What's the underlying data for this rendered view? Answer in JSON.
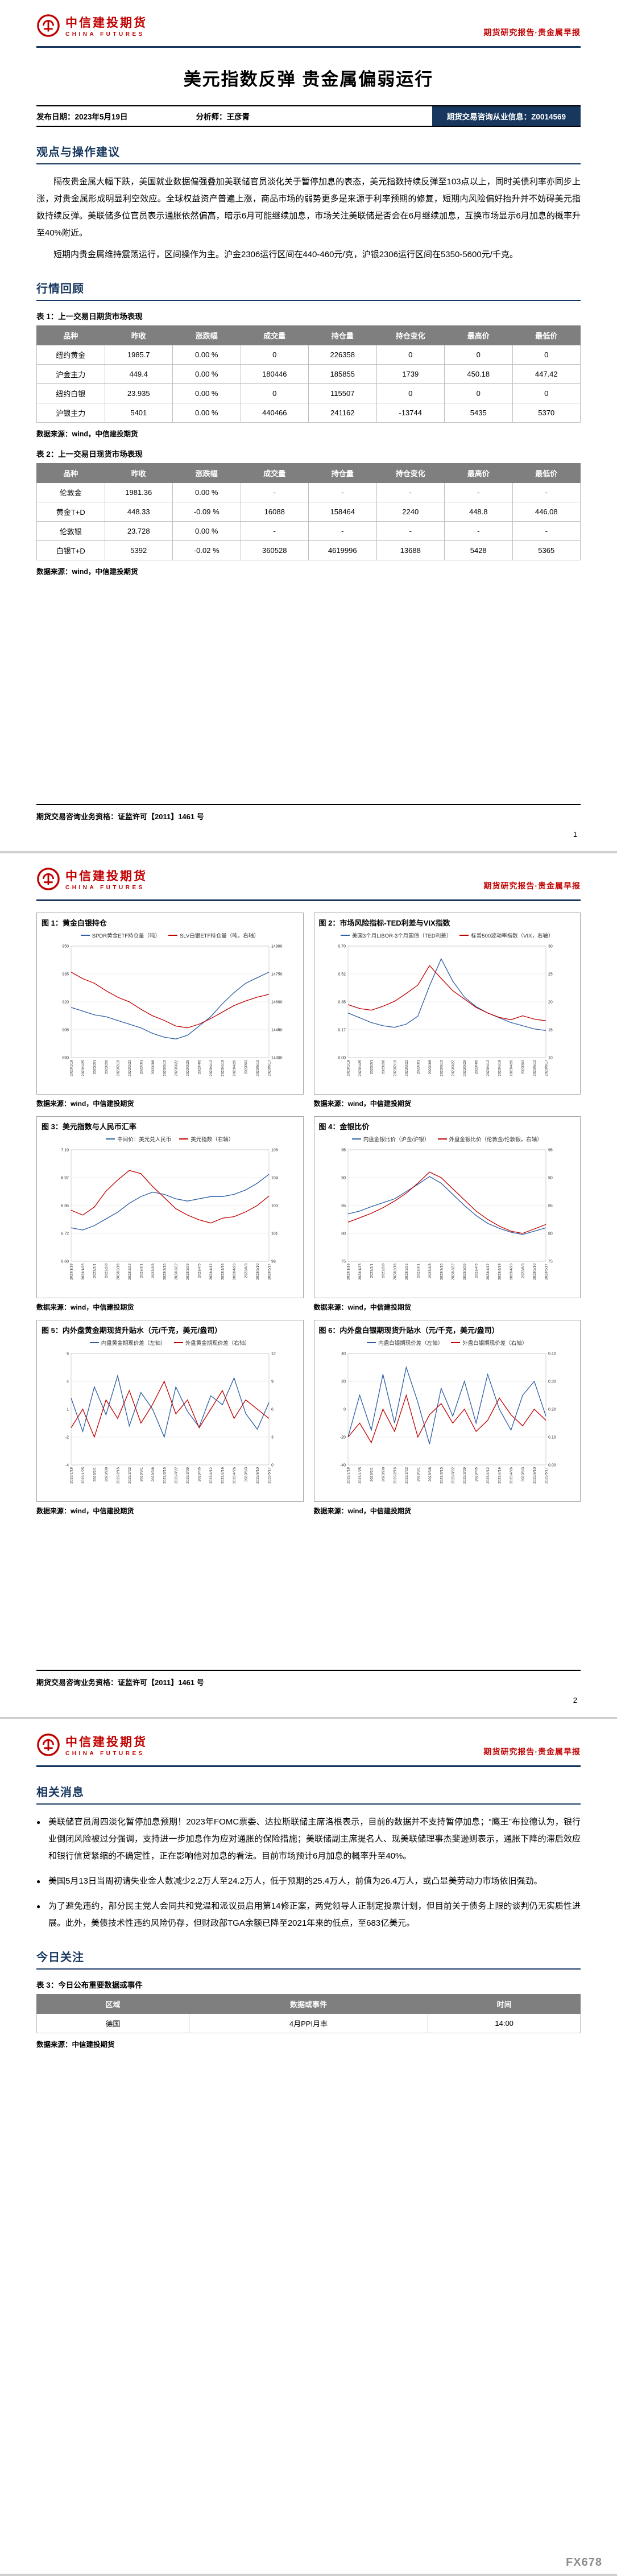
{
  "brand": {
    "logo_cn": "中信建投期货",
    "logo_en": "CHINA FUTURES",
    "header_tag": "期货研究报告·贵金属早报",
    "colors": {
      "red": "#c00000",
      "navy": "#17375e"
    }
  },
  "page1": {
    "title": "美元指数反弹  贵金属偏弱运行",
    "meta": {
      "publish": "发布日期：2023年5月19日",
      "analyst": "分析师：王彦青",
      "license": "期货交易咨询从业信息：Z0014569"
    },
    "viewpoint": {
      "title": "观点与操作建议",
      "paragraphs": [
        "隔夜贵金属大幅下跌，美国就业数据偏强叠加美联储官员淡化关于暂停加息的表态，美元指数持续反弹至103点以上，同时美债利率亦同步上涨，对贵金属形成明显利空效应。全球权益资产普遍上涨，商品市场的弱势更多是来源于利率预期的修复，短期内风险偏好抬升并不妨碍美元指数持续反弹。美联储多位官员表示通胀依然偏高，暗示6月可能继续加息，市场关注美联储是否会在6月继续加息，互换市场显示6月加息的概率升至40%附近。",
        "短期内贵金属维持震荡运行，区间操作为主。沪金2306运行区间在440-460元/克，沪银2306运行区间在5350-5600元/千克。"
      ]
    },
    "review": {
      "title": "行情回顾",
      "table1": {
        "caption": "表 1：上一交易日期货市场表现",
        "headers": [
          "品种",
          "昨收",
          "涨跌幅",
          "成交量",
          "持仓量",
          "持仓变化",
          "最高价",
          "最低价"
        ],
        "rows": [
          [
            "纽约黄金",
            "1985.7",
            "0.00 %",
            "0",
            "226358",
            "0",
            "0",
            "0"
          ],
          [
            "沪金主力",
            "449.4",
            "0.00 %",
            "180446",
            "185855",
            "1739",
            "450.18",
            "447.42"
          ],
          [
            "纽约白银",
            "23.935",
            "0.00 %",
            "0",
            "115507",
            "0",
            "0",
            "0"
          ],
          [
            "沪银主力",
            "5401",
            "0.00 %",
            "440466",
            "241162",
            "-13744",
            "5435",
            "5370"
          ]
        ],
        "source": "数据来源：wind，中信建投期货"
      },
      "table2": {
        "caption": "表 2：上一交易日现货市场表现",
        "headers": [
          "品种",
          "昨收",
          "涨跌幅",
          "成交量",
          "持仓量",
          "持仓变化",
          "最高价",
          "最低价"
        ],
        "rows": [
          [
            "伦敦金",
            "1981.36",
            "0.00 %",
            "-",
            "-",
            "-",
            "-",
            "-"
          ],
          [
            "黄金T+D",
            "448.33",
            "-0.09 %",
            "16088",
            "158464",
            "2240",
            "448.8",
            "446.08"
          ],
          [
            "伦敦银",
            "23.728",
            "0.00 %",
            "-",
            "-",
            "-",
            "-",
            "-"
          ],
          [
            "白银T+D",
            "5392",
            "-0.02 %",
            "360528",
            "4619996",
            "13688",
            "5428",
            "5365"
          ]
        ],
        "source": "数据来源：wind，中信建投期货"
      }
    },
    "footer": {
      "qualification": "期货交易咨询业务资格：证监许可【2011】1461 号",
      "page_no": "1"
    }
  },
  "page2": {
    "figure_source": "数据来源：wind，中信建投期货",
    "footer": {
      "qualification": "期货交易咨询业务资格：证监许可【2011】1461 号",
      "page_no": "2"
    }
  },
  "page3": {
    "news": {
      "title": "相关消息",
      "bullets": [
        "美联储官员周四淡化暂停加息预期！2023年FOMC票委、达拉斯联储主席洛根表示，目前的数据并不支持暂停加息；“鹰王”布拉德认为，银行业倒闭风险被过分强调，支持进一步加息作为应对通胀的保险措施；美联储副主席提名人、现美联储理事杰斐逊则表示，通胀下降的滞后效应和银行信贷紧缩的不确定性，正在影响他对加息的看法。目前市场预计6月加息的概率升至40%。",
        "美国5月13日当周初请失业金人数减少2.2万人至24.2万人，低于预期的25.4万人，前值为26.4万人，或凸显美劳动力市场依旧强劲。",
        "为了避免违约，部分民主党人会同共和党温和派议员启用第14修正案，两党领导人正制定投票计划，但目前关于债务上限的谈判仍无实质性进展。此外，美债技术性违约风险仍存，但财政部TGA余额已降至2021年来的低点，至683亿美元。"
      ]
    },
    "focus": {
      "title": "今日关注",
      "table3": {
        "caption": "表 3：今日公布重要数据或事件",
        "headers": [
          "区域",
          "数据或事件",
          "时间"
        ],
        "rows": [
          [
            "德国",
            "4月PPI月率",
            "14:00"
          ]
        ],
        "source": "数据来源：中信建投期货"
      }
    },
    "watermark": "FX678"
  },
  "chart_data": [
    {
      "id": "fig1",
      "type": "line",
      "title": "图 1：黄金白银持仓",
      "x": [
        "2023/1/18",
        "2023/1/25",
        "2023/2/1",
        "2023/2/8",
        "2023/2/15",
        "2023/2/22",
        "2023/3/1",
        "2023/3/8",
        "2023/3/15",
        "2023/3/22",
        "2023/3/29",
        "2023/4/5",
        "2023/4/12",
        "2023/4/19",
        "2023/4/26",
        "2023/5/3",
        "2023/5/10",
        "2023/5/17"
      ],
      "ylim_left": [
        890,
        950
      ],
      "left_dp": 0,
      "ylim_right": [
        14300,
        14900
      ],
      "right_dp": 0,
      "legend_position": "top",
      "grid": true,
      "series": [
        {
          "name": "SPDR黄金ETF持仓量（吨）",
          "axis": "left",
          "color": "#2e5fa3",
          "values": [
            917,
            915,
            913,
            912,
            910,
            908,
            906,
            903,
            901,
            900,
            902,
            907,
            912,
            919,
            925,
            930,
            933,
            936
          ]
        },
        {
          "name": "SLV白银ETF持仓量（吨，右轴）",
          "axis": "right",
          "color": "#c00000",
          "values": [
            14760,
            14725,
            14700,
            14660,
            14625,
            14600,
            14560,
            14525,
            14500,
            14470,
            14460,
            14480,
            14510,
            14545,
            14580,
            14605,
            14625,
            14640
          ]
        }
      ]
    },
    {
      "id": "fig2",
      "type": "line",
      "title": "图 2：市场风险指标-TED利差与VIX指数",
      "x": [
        "2023/1/18",
        "2023/1/25",
        "2023/2/1",
        "2023/2/8",
        "2023/2/15",
        "2023/2/22",
        "2023/3/1",
        "2023/3/8",
        "2023/3/15",
        "2023/3/22",
        "2023/3/29",
        "2023/4/5",
        "2023/4/12",
        "2023/4/19",
        "2023/4/26",
        "2023/5/3",
        "2023/5/10",
        "2023/5/17"
      ],
      "ylim_left": [
        0,
        0.7
      ],
      "left_dp": 2,
      "ylim_right": [
        10,
        30
      ],
      "right_dp": 0,
      "legend_position": "top",
      "grid": true,
      "series": [
        {
          "name": "美国3个月LIBOR-3个月国债（TED利差）",
          "axis": "left",
          "color": "#2e5fa3",
          "values": [
            0.28,
            0.25,
            0.22,
            0.2,
            0.19,
            0.21,
            0.26,
            0.45,
            0.62,
            0.48,
            0.38,
            0.32,
            0.28,
            0.25,
            0.22,
            0.2,
            0.18,
            0.17
          ]
        },
        {
          "name": "标普500波动率指数（VIX，右轴）",
          "axis": "right",
          "color": "#c00000",
          "values": [
            19.5,
            18.8,
            18.5,
            19.2,
            20.1,
            21.5,
            23.0,
            26.5,
            24.2,
            22.0,
            20.5,
            19.0,
            18.0,
            17.2,
            16.8,
            17.5,
            16.9,
            16.6
          ]
        }
      ]
    },
    {
      "id": "fig3",
      "type": "line",
      "title": "图 3：美元指数与人民币汇率",
      "x": [
        "2023/1/18",
        "2023/1/25",
        "2023/2/1",
        "2023/2/8",
        "2023/2/15",
        "2023/2/22",
        "2023/3/1",
        "2023/3/8",
        "2023/3/15",
        "2023/3/22",
        "2023/3/29",
        "2023/4/5",
        "2023/4/12",
        "2023/4/19",
        "2023/4/26",
        "2023/5/3",
        "2023/5/10",
        "2023/5/17"
      ],
      "ylim_left": [
        6.6,
        7.1
      ],
      "left_dp": 2,
      "ylim_right": [
        99,
        106
      ],
      "right_dp": 0,
      "legend_position": "top",
      "grid": true,
      "series": [
        {
          "name": "中间价：美元兑人民币",
          "axis": "left",
          "color": "#2e5fa3",
          "values": [
            6.75,
            6.74,
            6.76,
            6.79,
            6.82,
            6.86,
            6.89,
            6.91,
            6.9,
            6.88,
            6.87,
            6.88,
            6.89,
            6.89,
            6.9,
            6.92,
            6.95,
            6.99
          ]
        },
        {
          "name": "美元指数（右轴）",
          "axis": "right",
          "color": "#c00000",
          "values": [
            102.2,
            101.9,
            102.4,
            103.4,
            104.1,
            104.7,
            104.5,
            103.7,
            103.0,
            102.3,
            101.9,
            101.6,
            101.4,
            101.7,
            101.8,
            102.1,
            102.5,
            103.1
          ]
        }
      ]
    },
    {
      "id": "fig4",
      "type": "line",
      "title": "图 4：金银比价",
      "x": [
        "2023/1/18",
        "2023/1/25",
        "2023/2/1",
        "2023/2/8",
        "2023/2/15",
        "2023/2/22",
        "2023/3/1",
        "2023/3/8",
        "2023/3/15",
        "2023/3/22",
        "2023/3/29",
        "2023/4/5",
        "2023/4/12",
        "2023/4/19",
        "2023/4/26",
        "2023/5/3",
        "2023/5/10",
        "2023/5/17"
      ],
      "ylim_left": [
        75,
        95
      ],
      "left_dp": 0,
      "ylim_right": [
        75,
        95
      ],
      "right_dp": 0,
      "legend_position": "top",
      "grid": true,
      "series": [
        {
          "name": "内盘金银比价（沪金/沪银）",
          "axis": "left",
          "color": "#2e5fa3",
          "values": [
            83.5,
            84.0,
            84.8,
            85.5,
            86.2,
            87.5,
            88.8,
            90.2,
            89.0,
            87.0,
            85.0,
            83.2,
            81.8,
            80.9,
            80.2,
            79.8,
            80.4,
            81.0
          ]
        },
        {
          "name": "外盘金银比价（伦敦金/伦敦银，右轴）",
          "axis": "right",
          "color": "#c00000",
          "values": [
            82.0,
            82.8,
            83.6,
            84.6,
            85.8,
            87.2,
            89.0,
            91.0,
            90.0,
            88.0,
            86.0,
            84.0,
            82.5,
            81.3,
            80.4,
            80.0,
            80.8,
            81.6
          ]
        }
      ]
    },
    {
      "id": "fig5",
      "type": "line",
      "title": "图 5：内外盘黄金期现货升贴水（元/千克，美元/盎司）",
      "x": [
        "2023/1/18",
        "2023/1/25",
        "2023/2/1",
        "2023/2/8",
        "2023/2/15",
        "2023/2/22",
        "2023/3/1",
        "2023/3/8",
        "2023/3/15",
        "2023/3/22",
        "2023/3/29",
        "2023/4/5",
        "2023/4/12",
        "2023/4/19",
        "2023/4/26",
        "2023/5/3",
        "2023/5/10",
        "2023/5/17"
      ],
      "ylim_left": [
        -4,
        6
      ],
      "left_dp": 0,
      "ylim_right": [
        0,
        12
      ],
      "right_dp": 0,
      "legend_position": "top",
      "grid": true,
      "series": [
        {
          "name": "内盘黄金期现价差（左轴）",
          "axis": "left",
          "color": "#2e5fa3",
          "values": [
            2.0,
            -1.0,
            3.0,
            0.5,
            4.0,
            -0.5,
            2.5,
            1.0,
            -1.5,
            3.0,
            0.8,
            -0.6,
            2.2,
            1.4,
            3.8,
            0.6,
            -0.8,
            1.6
          ]
        },
        {
          "name": "外盘黄金期现价差（右轴）",
          "axis": "right",
          "color": "#c00000",
          "values": [
            4.0,
            6.0,
            3.0,
            7.0,
            5.0,
            8.0,
            4.5,
            6.5,
            9.0,
            5.5,
            7.0,
            4.0,
            6.0,
            8.0,
            5.0,
            7.0,
            6.0,
            5.0
          ]
        }
      ]
    },
    {
      "id": "fig6",
      "type": "line",
      "title": "图 6：内外盘白银期现货升贴水（元/千克，美元/盎司）",
      "x": [
        "2023/1/18",
        "2023/1/25",
        "2023/2/1",
        "2023/2/8",
        "2023/2/15",
        "2023/2/22",
        "2023/3/1",
        "2023/3/8",
        "2023/3/15",
        "2023/3/22",
        "2023/3/29",
        "2023/4/5",
        "2023/4/12",
        "2023/4/19",
        "2023/4/26",
        "2023/5/3",
        "2023/5/10",
        "2023/5/17"
      ],
      "ylim_left": [
        -40,
        40
      ],
      "left_dp": 0,
      "ylim_right": [
        0,
        0.4
      ],
      "right_dp": 2,
      "legend_position": "top",
      "grid": true,
      "series": [
        {
          "name": "内盘白银期现价差（左轴）",
          "axis": "left",
          "color": "#2e5fa3",
          "values": [
            -20,
            10,
            -15,
            25,
            -10,
            30,
            5,
            -25,
            15,
            -5,
            20,
            -10,
            25,
            0,
            -15,
            10,
            20,
            -5
          ]
        },
        {
          "name": "外盘白银期现价差（右轴）",
          "axis": "right",
          "color": "#c00000",
          "values": [
            0.1,
            0.15,
            0.08,
            0.2,
            0.12,
            0.25,
            0.1,
            0.18,
            0.22,
            0.15,
            0.2,
            0.12,
            0.16,
            0.24,
            0.18,
            0.14,
            0.2,
            0.16
          ]
        }
      ]
    }
  ]
}
